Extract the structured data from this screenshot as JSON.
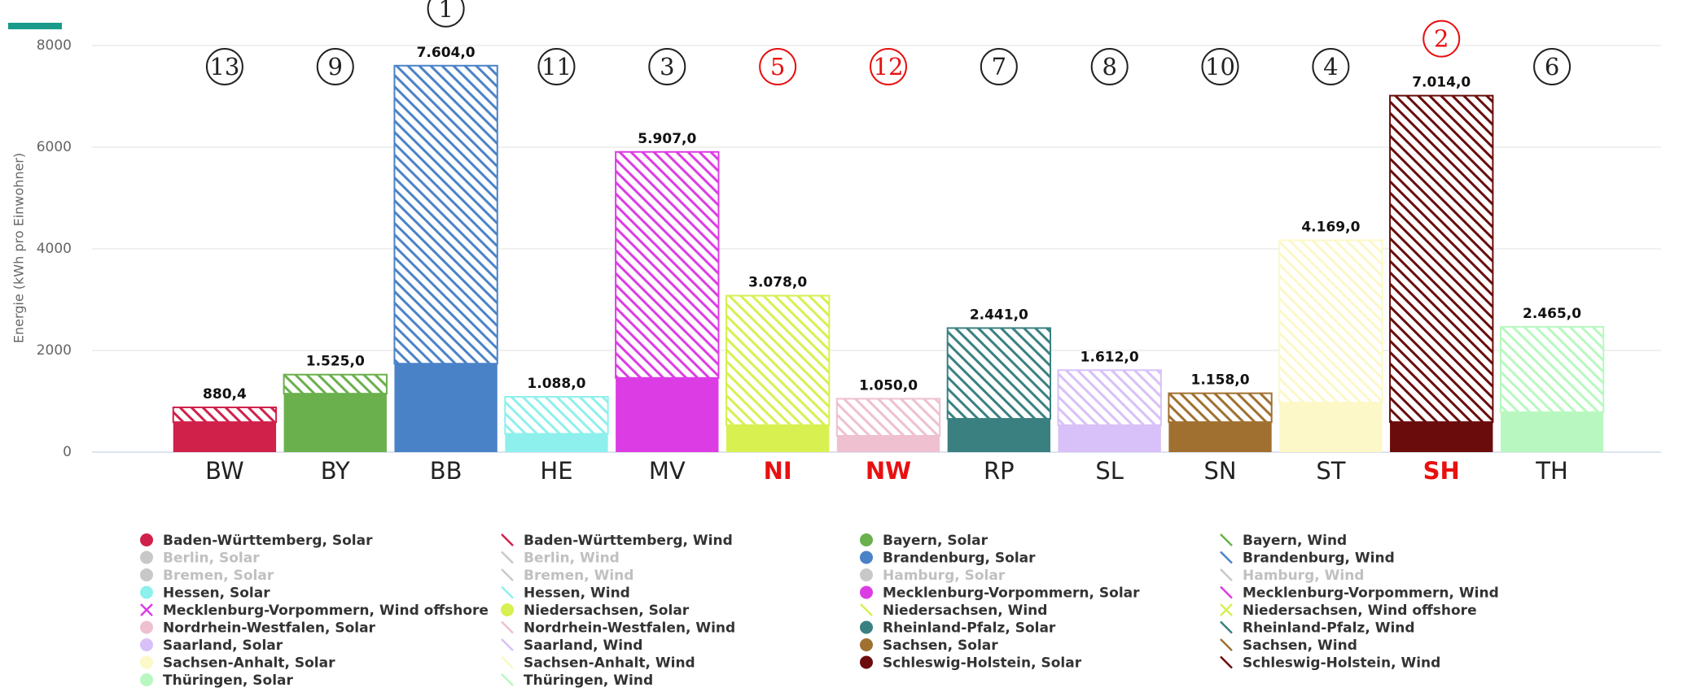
{
  "chart_data": {
    "type": "bar",
    "stacked": true,
    "y_label": "Energie (kWh pro Einwohner)",
    "categories": [
      "BW",
      "BY",
      "BB",
      "HE",
      "MV",
      "NI",
      "NW",
      "RP",
      "SL",
      "SN",
      "ST",
      "SH",
      "TH"
    ],
    "category_colors": [
      "#222222",
      "#222222",
      "#222222",
      "#222222",
      "#222222",
      "#e81010",
      "#e81010",
      "#222222",
      "#222222",
      "#222222",
      "#222222",
      "#e81010",
      "#222222"
    ],
    "ranks": [
      13,
      9,
      1,
      11,
      3,
      5,
      12,
      7,
      8,
      10,
      4,
      2,
      6
    ],
    "totals": [
      880.4,
      1525,
      7604,
      1088,
      5907,
      3078,
      1050,
      2441,
      1612,
      1158,
      4169,
      7014,
      2465
    ],
    "total_labels": [
      "880,4",
      "1.525,0",
      "7.604,0",
      "1.088,0",
      "5.907,0",
      "3.078,0",
      "1.050,0",
      "2.441,0",
      "1.612,0",
      "1.158,0",
      "4.169,0",
      "7.014,0",
      "2.465,0"
    ],
    "ylim": [
      0,
      8000
    ],
    "yticks": [
      0,
      2000,
      4000,
      6000,
      8000
    ],
    "grid": true,
    "series": [
      {
        "name": "Baden-Württemberg, Solar",
        "color": "#d0214a",
        "pattern": "solid",
        "values": [
          590,
          null,
          null,
          null,
          null,
          null,
          null,
          null,
          null,
          null,
          null,
          null,
          null
        ]
      },
      {
        "name": "Baden-Württemberg, Wind",
        "color": "#d0214a",
        "pattern": "hatch",
        "values": [
          290.4,
          null,
          null,
          null,
          null,
          null,
          null,
          null,
          null,
          null,
          null,
          null,
          null
        ]
      },
      {
        "name": "Bayern, Solar",
        "color": "#6ab04c",
        "pattern": "solid",
        "values": [
          null,
          1150,
          null,
          null,
          null,
          null,
          null,
          null,
          null,
          null,
          null,
          null,
          null
        ]
      },
      {
        "name": "Bayern, Wind",
        "color": "#6ab04c",
        "pattern": "hatch",
        "values": [
          null,
          375,
          null,
          null,
          null,
          null,
          null,
          null,
          null,
          null,
          null,
          null,
          null
        ]
      },
      {
        "name": "Berlin, Solar",
        "color": "#c8c8c8",
        "pattern": "solid",
        "hidden": true,
        "values": [
          null,
          null,
          null,
          null,
          null,
          null,
          null,
          null,
          null,
          null,
          null,
          null,
          null
        ]
      },
      {
        "name": "Berlin, Wind",
        "color": "#c8c8c8",
        "pattern": "hatch",
        "hidden": true,
        "values": [
          null,
          null,
          null,
          null,
          null,
          null,
          null,
          null,
          null,
          null,
          null,
          null,
          null
        ]
      },
      {
        "name": "Brandenburg, Solar",
        "color": "#4a82c8",
        "pattern": "solid",
        "values": [
          null,
          null,
          1740,
          null,
          null,
          null,
          null,
          null,
          null,
          null,
          null,
          null,
          null
        ]
      },
      {
        "name": "Brandenburg, Wind",
        "color": "#4a82c8",
        "pattern": "hatch",
        "values": [
          null,
          null,
          5864,
          null,
          null,
          null,
          null,
          null,
          null,
          null,
          null,
          null,
          null
        ]
      },
      {
        "name": "Bremen, Solar",
        "color": "#c8c8c8",
        "pattern": "solid",
        "hidden": true,
        "values": [
          null,
          null,
          null,
          null,
          null,
          null,
          null,
          null,
          null,
          null,
          null,
          null,
          null
        ]
      },
      {
        "name": "Bremen, Wind",
        "color": "#c8c8c8",
        "pattern": "hatch",
        "hidden": true,
        "values": [
          null,
          null,
          null,
          null,
          null,
          null,
          null,
          null,
          null,
          null,
          null,
          null,
          null
        ]
      },
      {
        "name": "Hamburg, Solar",
        "color": "#c8c8c8",
        "pattern": "solid",
        "hidden": true,
        "values": [
          null,
          null,
          null,
          null,
          null,
          null,
          null,
          null,
          null,
          null,
          null,
          null,
          null
        ]
      },
      {
        "name": "Hamburg, Wind",
        "color": "#c8c8c8",
        "pattern": "hatch",
        "hidden": true,
        "values": [
          null,
          null,
          null,
          null,
          null,
          null,
          null,
          null,
          null,
          null,
          null,
          null,
          null
        ]
      },
      {
        "name": "Hessen, Solar",
        "color": "#8ef0ec",
        "pattern": "solid",
        "values": [
          null,
          null,
          null,
          360,
          null,
          null,
          null,
          null,
          null,
          null,
          null,
          null,
          null
        ]
      },
      {
        "name": "Hessen, Wind",
        "color": "#8ef0ec",
        "pattern": "hatch",
        "values": [
          null,
          null,
          null,
          728,
          null,
          null,
          null,
          null,
          null,
          null,
          null,
          null,
          null
        ]
      },
      {
        "name": "Mecklenburg-Vorpommern, Solar",
        "color": "#dc3ce4",
        "pattern": "solid",
        "values": [
          null,
          null,
          null,
          null,
          1460,
          null,
          null,
          null,
          null,
          null,
          null,
          null,
          null
        ]
      },
      {
        "name": "Mecklenburg-Vorpommern, Wind",
        "color": "#dc3ce4",
        "pattern": "hatch",
        "values": [
          null,
          null,
          null,
          null,
          4447,
          null,
          null,
          null,
          null,
          null,
          null,
          null,
          null
        ]
      },
      {
        "name": "Mecklenburg-Vorpommern, Wind offshore",
        "color": "#dc3ce4",
        "pattern": "cross",
        "values": [
          null,
          null,
          null,
          null,
          null,
          null,
          null,
          null,
          null,
          null,
          null,
          null,
          null
        ]
      },
      {
        "name": "Niedersachsen, Solar",
        "color": "#d8f050",
        "pattern": "solid",
        "values": [
          null,
          null,
          null,
          null,
          null,
          530,
          null,
          null,
          null,
          null,
          null,
          null,
          null
        ]
      },
      {
        "name": "Niedersachsen, Wind",
        "color": "#d8f050",
        "pattern": "hatch",
        "values": [
          null,
          null,
          null,
          null,
          null,
          2548,
          null,
          null,
          null,
          null,
          null,
          null,
          null
        ]
      },
      {
        "name": "Niedersachsen, Wind offshore",
        "color": "#d8f050",
        "pattern": "cross",
        "values": [
          null,
          null,
          null,
          null,
          null,
          null,
          null,
          null,
          null,
          null,
          null,
          null,
          null
        ]
      },
      {
        "name": "Nordrhein-Westfalen, Solar",
        "color": "#eec0d0",
        "pattern": "solid",
        "values": [
          null,
          null,
          null,
          null,
          null,
          null,
          320,
          null,
          null,
          null,
          null,
          null,
          null
        ]
      },
      {
        "name": "Nordrhein-Westfalen, Wind",
        "color": "#eec0d0",
        "pattern": "hatch",
        "values": [
          null,
          null,
          null,
          null,
          null,
          null,
          730,
          null,
          null,
          null,
          null,
          null,
          null
        ]
      },
      {
        "name": "Rheinland-Pfalz, Solar",
        "color": "#3a8080",
        "pattern": "solid",
        "values": [
          null,
          null,
          null,
          null,
          null,
          null,
          null,
          655,
          null,
          null,
          null,
          null,
          null
        ]
      },
      {
        "name": "Rheinland-Pfalz, Wind",
        "color": "#3a8080",
        "pattern": "hatch",
        "values": [
          null,
          null,
          null,
          null,
          null,
          null,
          null,
          1786,
          null,
          null,
          null,
          null,
          null
        ]
      },
      {
        "name": "Saarland, Solar",
        "color": "#d8c0f8",
        "pattern": "solid",
        "values": [
          null,
          null,
          null,
          null,
          null,
          null,
          null,
          null,
          530,
          null,
          null,
          null,
          null
        ]
      },
      {
        "name": "Saarland, Wind",
        "color": "#d8c0f8",
        "pattern": "hatch",
        "values": [
          null,
          null,
          null,
          null,
          null,
          null,
          null,
          null,
          1082,
          null,
          null,
          null,
          null
        ]
      },
      {
        "name": "Sachsen, Solar",
        "color": "#a07030",
        "pattern": "solid",
        "values": [
          null,
          null,
          null,
          null,
          null,
          null,
          null,
          null,
          null,
          590,
          null,
          null,
          null
        ]
      },
      {
        "name": "Sachsen, Wind",
        "color": "#a07030",
        "pattern": "hatch",
        "values": [
          null,
          null,
          null,
          null,
          null,
          null,
          null,
          null,
          null,
          568,
          null,
          null,
          null
        ]
      },
      {
        "name": "Sachsen-Anhalt, Solar",
        "color": "#fcf8c8",
        "pattern": "solid",
        "values": [
          null,
          null,
          null,
          null,
          null,
          null,
          null,
          null,
          null,
          null,
          975,
          null,
          null
        ]
      },
      {
        "name": "Sachsen-Anhalt, Wind",
        "color": "#fcf8c8",
        "pattern": "hatch",
        "values": [
          null,
          null,
          null,
          null,
          null,
          null,
          null,
          null,
          null,
          null,
          3194,
          null,
          null
        ]
      },
      {
        "name": "Schleswig-Holstein, Solar",
        "color": "#6a0c0c",
        "pattern": "solid",
        "values": [
          null,
          null,
          null,
          null,
          null,
          null,
          null,
          null,
          null,
          null,
          null,
          590,
          null
        ]
      },
      {
        "name": "Schleswig-Holstein, Wind",
        "color": "#6a0c0c",
        "pattern": "hatch",
        "values": [
          null,
          null,
          null,
          null,
          null,
          null,
          null,
          null,
          null,
          null,
          null,
          6424,
          null
        ]
      },
      {
        "name": "Thüringen, Solar",
        "color": "#b8f8c0",
        "pattern": "solid",
        "values": [
          null,
          null,
          null,
          null,
          null,
          null,
          null,
          null,
          null,
          null,
          null,
          null,
          785
        ]
      },
      {
        "name": "Thüringen, Wind",
        "color": "#b8f8c0",
        "pattern": "hatch",
        "values": [
          null,
          null,
          null,
          null,
          null,
          null,
          null,
          null,
          null,
          null,
          null,
          null,
          1680
        ]
      }
    ]
  }
}
